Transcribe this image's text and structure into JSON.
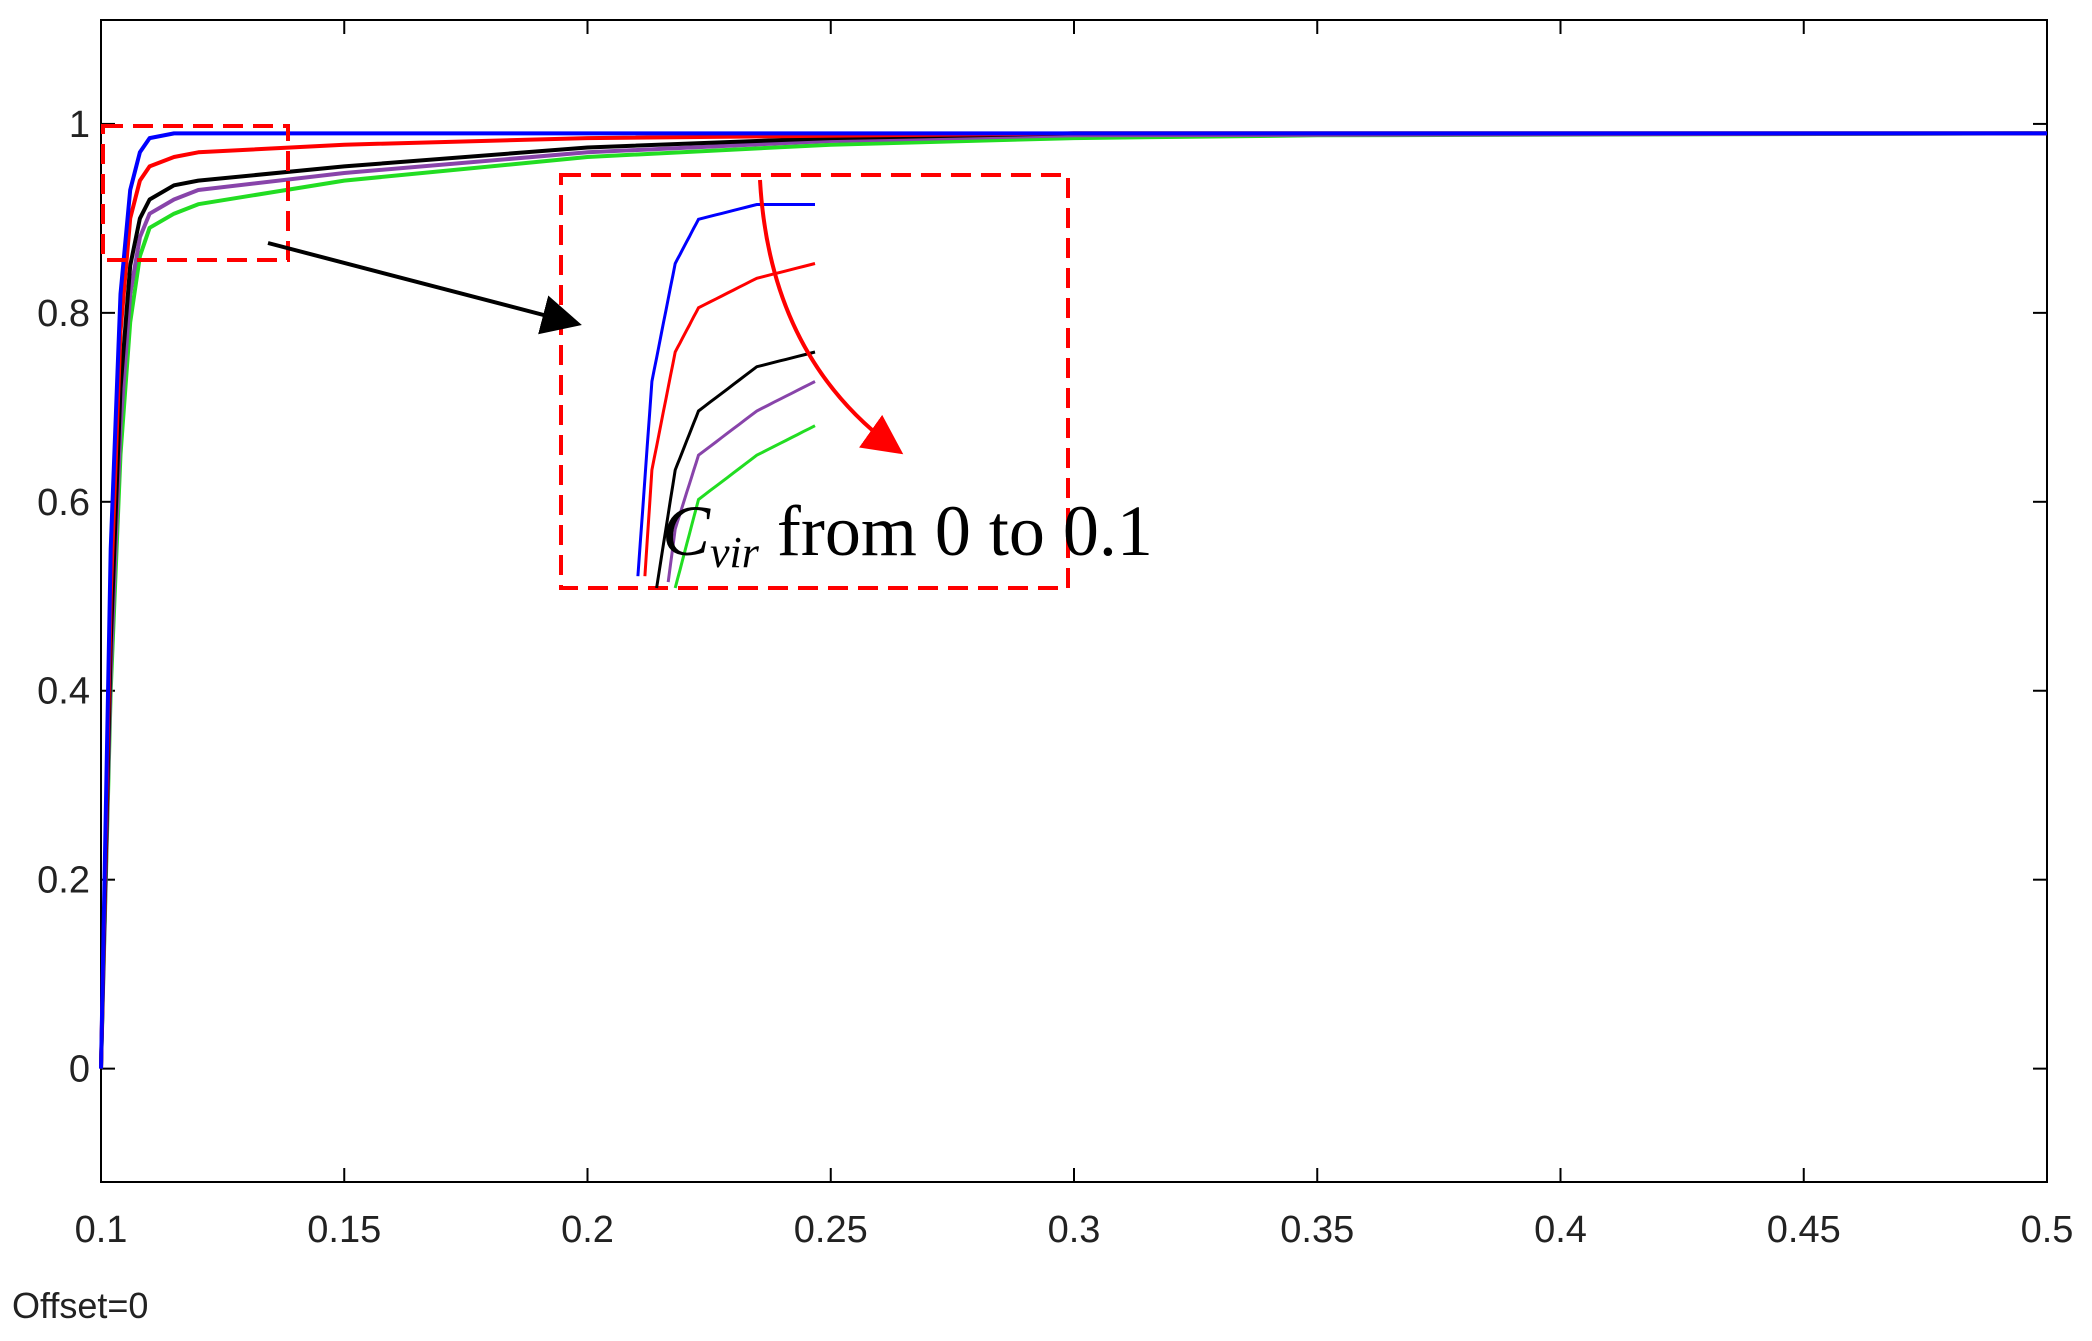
{
  "chart_data": {
    "type": "line",
    "title": "",
    "xlabel": "",
    "ylabel": "",
    "xlim": [
      0.1,
      0.5
    ],
    "ylim": [
      -0.12,
      1.11
    ],
    "x_ticks": [
      0.1,
      0.15,
      0.2,
      0.25,
      0.3,
      0.35,
      0.4,
      0.45,
      0.5
    ],
    "x_tick_labels": [
      "0.1",
      "0.15",
      "0.2",
      "0.25",
      "0.3",
      "0.35",
      "0.4",
      "0.45",
      "0.5"
    ],
    "y_ticks": [
      0,
      0.2,
      0.4,
      0.6,
      0.8,
      1
    ],
    "y_tick_labels": [
      "0",
      "0.2",
      "0.4",
      "0.6",
      "0.8",
      "1"
    ],
    "grid": false,
    "bottom_left_text": "Offset=0",
    "series": [
      {
        "color": "#0000ff",
        "x": [
          0.1,
          0.102,
          0.104,
          0.106,
          0.108,
          0.11,
          0.115,
          0.12,
          0.15,
          0.2,
          0.3,
          0.5
        ],
        "y": [
          0,
          0.55,
          0.82,
          0.93,
          0.97,
          0.985,
          0.99,
          0.99,
          0.99,
          0.99,
          0.99,
          0.99
        ]
      },
      {
        "color": "#ff0000",
        "x": [
          0.1,
          0.102,
          0.104,
          0.106,
          0.108,
          0.11,
          0.115,
          0.12,
          0.15,
          0.2,
          0.3,
          0.5
        ],
        "y": [
          0,
          0.5,
          0.78,
          0.9,
          0.94,
          0.955,
          0.965,
          0.97,
          0.978,
          0.985,
          0.99,
          0.99
        ]
      },
      {
        "color": "#000000",
        "x": [
          0.1,
          0.102,
          0.104,
          0.106,
          0.108,
          0.11,
          0.115,
          0.12,
          0.15,
          0.2,
          0.25,
          0.3,
          0.5
        ],
        "y": [
          0,
          0.45,
          0.72,
          0.85,
          0.9,
          0.92,
          0.935,
          0.94,
          0.955,
          0.975,
          0.985,
          0.99,
          0.99
        ]
      },
      {
        "color": "#8844aa",
        "x": [
          0.1,
          0.102,
          0.104,
          0.106,
          0.108,
          0.11,
          0.115,
          0.12,
          0.15,
          0.2,
          0.25,
          0.3,
          0.5
        ],
        "y": [
          0,
          0.42,
          0.68,
          0.82,
          0.88,
          0.905,
          0.92,
          0.93,
          0.948,
          0.97,
          0.982,
          0.988,
          0.99
        ]
      },
      {
        "color": "#22dd22",
        "x": [
          0.1,
          0.102,
          0.104,
          0.106,
          0.108,
          0.11,
          0.115,
          0.12,
          0.15,
          0.2,
          0.25,
          0.3,
          0.35,
          0.5
        ],
        "y": [
          0,
          0.4,
          0.65,
          0.79,
          0.86,
          0.89,
          0.905,
          0.915,
          0.94,
          0.965,
          0.978,
          0.985,
          0.988,
          0.99
        ]
      }
    ],
    "annotation": {
      "text_main": "C",
      "text_sub": "vir",
      "text_rest": " from 0 to 0.1"
    }
  }
}
